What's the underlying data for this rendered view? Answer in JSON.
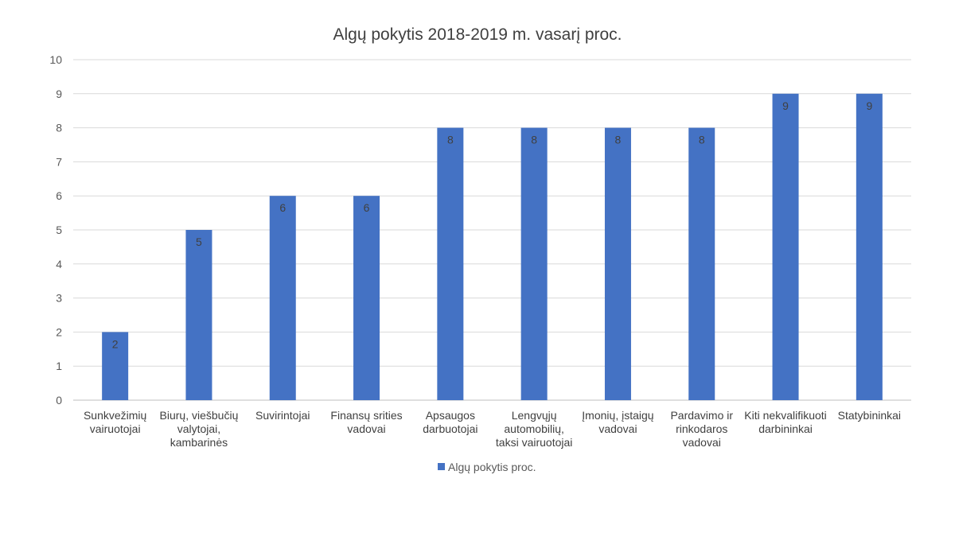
{
  "chart_data": {
    "type": "bar",
    "title": "Algų pokytis 2018-2019 m. vasarį proc.",
    "xlabel": "",
    "ylabel": "",
    "ylim": [
      0,
      10
    ],
    "yticks": [
      0,
      1,
      2,
      3,
      4,
      5,
      6,
      7,
      8,
      9,
      10
    ],
    "grid": true,
    "legend_position": "bottom",
    "bar_color": "#4472C4",
    "categories": [
      [
        "Sunkvežimių",
        "vairuotojai"
      ],
      [
        "Biurų, viešbučių",
        "valytojai,",
        "kambarinės"
      ],
      [
        "Suvirintojai"
      ],
      [
        "Finansų srities",
        "vadovai"
      ],
      [
        "Apsaugos",
        "darbuotojai"
      ],
      [
        "Lengvųjų",
        "automobilių,",
        "taksi vairuotojai"
      ],
      [
        "Įmonių, įstaigų",
        "vadovai"
      ],
      [
        "Pardavimo ir",
        "rinkodaros",
        "vadovai"
      ],
      [
        "Kiti nekvalifikuoti",
        "darbininkai"
      ],
      [
        "Statybininkai"
      ]
    ],
    "series": [
      {
        "name": "Algų pokytis proc.",
        "values": [
          2,
          5,
          6,
          6,
          8,
          8,
          8,
          8,
          9,
          9
        ]
      }
    ]
  }
}
